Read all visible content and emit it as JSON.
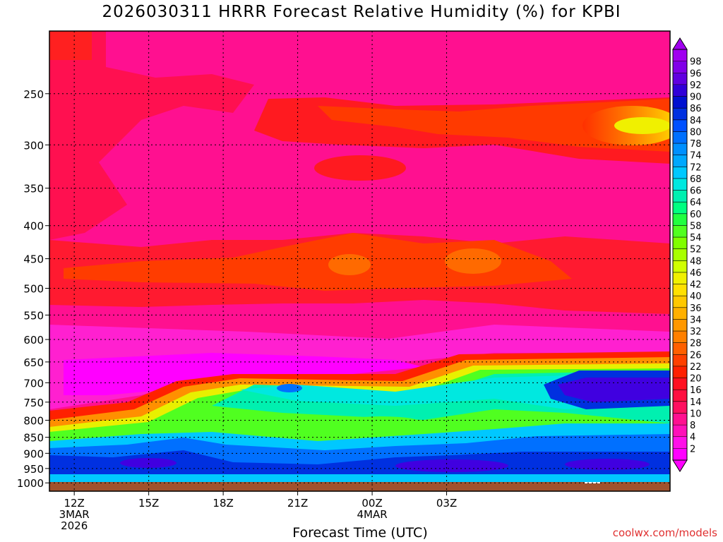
{
  "title": "2026030311 HRRR Forecast Relative Humidity (%) for KPBI",
  "watermark": "coolwx.com/models",
  "chart_data": {
    "type": "heatmap",
    "title": "2026030311 HRRR Forecast Relative Humidity (%) for KPBI",
    "xlabel": "Forecast Time (UTC)",
    "ylabel": "",
    "x_unit": "hour",
    "x_start_hour": 11,
    "x_end_hour": 36,
    "x_ticks": [
      {
        "hour": 12,
        "lines": [
          "12Z",
          "3MAR",
          "2026"
        ]
      },
      {
        "hour": 15,
        "lines": [
          "15Z"
        ]
      },
      {
        "hour": 18,
        "lines": [
          "18Z"
        ]
      },
      {
        "hour": 21,
        "lines": [
          "21Z"
        ]
      },
      {
        "hour": 24,
        "lines": [
          "00Z",
          "4MAR"
        ]
      },
      {
        "hour": 27,
        "lines": [
          "03Z"
        ]
      }
    ],
    "y_ticks": [
      250,
      300,
      350,
      400,
      450,
      500,
      550,
      600,
      650,
      700,
      750,
      800,
      850,
      900,
      950,
      1000
    ],
    "ylim": [
      1030,
      200
    ],
    "y_scale": "log-pressure",
    "grid": true,
    "colorbar": {
      "levels": [
        2,
        4,
        8,
        10,
        14,
        16,
        20,
        22,
        26,
        28,
        32,
        34,
        36,
        40,
        42,
        46,
        48,
        52,
        54,
        58,
        60,
        64,
        66,
        68,
        72,
        74,
        78,
        80,
        84,
        86,
        90,
        92,
        96,
        98
      ],
      "colors": [
        "#ff00ff",
        "#ff10e8",
        "#ff10b8",
        "#ff1090",
        "#ff1060",
        "#ff1040",
        "#ff1020",
        "#ff2000",
        "#ff4000",
        "#ff6000",
        "#ff8000",
        "#ff9800",
        "#ffb000",
        "#ffc800",
        "#ffe000",
        "#f0f000",
        "#d0ff00",
        "#a8ff00",
        "#80ff00",
        "#50ff20",
        "#20ff40",
        "#00ff80",
        "#00f0b0",
        "#00e8e0",
        "#00c8ff",
        "#00a8ff",
        "#0090ff",
        "#0070ff",
        "#0050ff",
        "#0030e0",
        "#0010d0",
        "#3000d8",
        "#6000e0",
        "#8000e8",
        "#a000f0"
      ]
    },
    "regions": [
      {
        "name": "upper-magenta",
        "value": 6
      },
      {
        "name": "upper-red-band",
        "value": 20
      },
      {
        "name": "jet-dry-core",
        "value": 32
      },
      {
        "name": "mid-red-band",
        "value": 20
      },
      {
        "name": "low-moist-layer",
        "value": 60
      },
      {
        "name": "boundary-layer",
        "value": 90
      }
    ]
  }
}
